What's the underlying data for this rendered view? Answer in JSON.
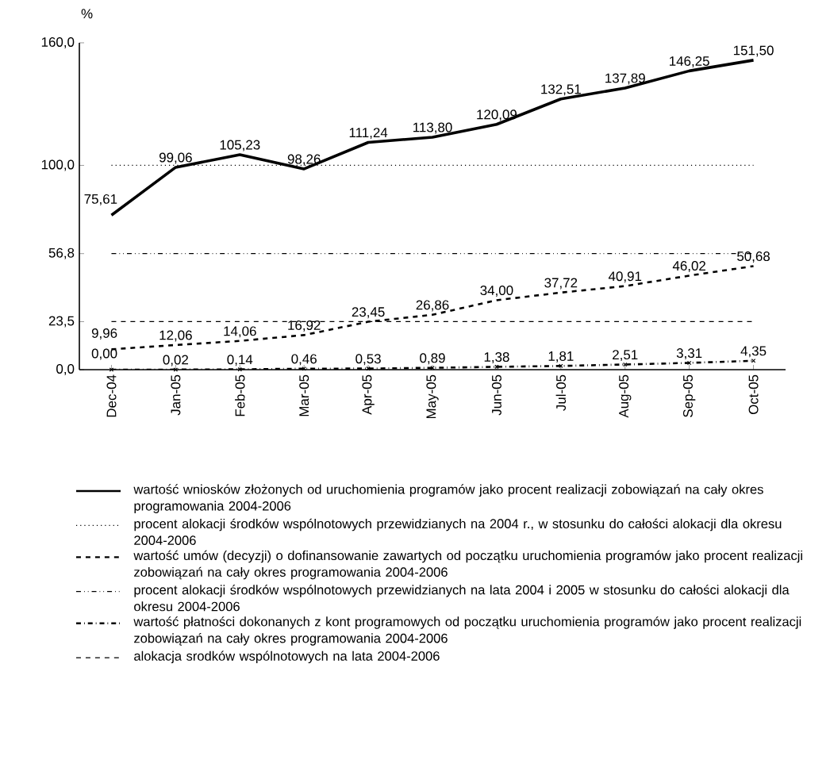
{
  "chart_data": {
    "type": "line",
    "ylabel": "%",
    "categories": [
      "Dec-04",
      "Jan-05",
      "Feb-05",
      "Mar-05",
      "Apr-05",
      "May-05",
      "Jun-05",
      "Jul-05",
      "Aug-05",
      "Sep-05",
      "Oct-05"
    ],
    "series": [
      {
        "name": "wartość  wniosków złożonych od uruchomienia programów jako procent realizacji zobowiązań na cały okres programowania 2004-2006",
        "color": "#000000",
        "line_style": "solid",
        "values": [
          75.61,
          99.06,
          105.23,
          98.26,
          111.24,
          113.8,
          120.09,
          132.51,
          137.89,
          146.25,
          151.5
        ],
        "value_labels": [
          "75,61",
          "99,06",
          "105,23",
          "98,26",
          "111,24",
          "113,80",
          "120,09",
          "132,51",
          "137,89",
          "146,25",
          "151,50"
        ]
      },
      {
        "name": "procent alokacji środków wspólnotowych przewidzianych na 2004 r., w stosunku do całości alokacji dla okresu 2004-2006",
        "color": "#000000",
        "line_style": "dotted",
        "values": [
          100,
          100,
          100,
          100,
          100,
          100,
          100,
          100,
          100,
          100,
          100
        ]
      },
      {
        "name": "wartość  umów (decyzji) o dofinansowanie zawartych od początku uruchomienia programów jako procent realizacji zobowiązań na cały okres programowania 2004-2006",
        "color": "#000000",
        "line_style": "dashed",
        "values": [
          9.96,
          12.06,
          14.06,
          16.92,
          23.45,
          26.86,
          34.0,
          37.72,
          40.91,
          46.02,
          50.68
        ],
        "value_labels": [
          "9,96",
          "12,06",
          "14,06",
          "16,92",
          "23,45",
          "26,86",
          "34,00",
          "37,72",
          "40,91",
          "46,02",
          "50,68"
        ]
      },
      {
        "name": "procent alokacji środków wspólnotowych przewidzianych na lata 2004 i 2005 w stosunku do całości alokacji dla okresu 2004-2006",
        "color": "#000000",
        "line_style": "dashdotdot",
        "values": [
          56.8,
          56.8,
          56.8,
          56.8,
          56.8,
          56.8,
          56.8,
          56.8,
          56.8,
          56.8,
          56.8
        ]
      },
      {
        "name": "wartość płatności dokonanych z kont programowych od początku uruchomienia programów jako procent realizacji zobowiązań na cały okres programowania 2004-2006",
        "color": "#000000",
        "line_style": "dashdot",
        "marker": "cross",
        "values": [
          0.0,
          0.02,
          0.14,
          0.46,
          0.53,
          0.89,
          1.38,
          1.81,
          2.51,
          3.31,
          4.35
        ],
        "value_labels": [
          "0,00",
          "0,02",
          "0,14",
          "0,46",
          "0,53",
          "0,89",
          "1,38",
          "1,81",
          "2,51",
          "3,31",
          "4,35"
        ]
      },
      {
        "name": "alokacja srodków wspólnotowych na lata 2004-2006",
        "color": "#000000",
        "line_style": "dashed",
        "values": [
          23.5,
          23.5,
          23.5,
          23.5,
          23.5,
          23.5,
          23.5,
          23.5,
          23.5,
          23.5,
          23.5
        ]
      }
    ],
    "ylim": [
      0,
      160
    ],
    "yticks": [
      {
        "value": 0,
        "label": "0,0"
      },
      {
        "value": 23.5,
        "label": "23,5"
      },
      {
        "value": 56.8,
        "label": "56,8"
      },
      {
        "value": 100,
        "label": "100,0"
      },
      {
        "value": 160,
        "label": "160,0"
      }
    ],
    "grid": false,
    "legend": "bottom"
  }
}
